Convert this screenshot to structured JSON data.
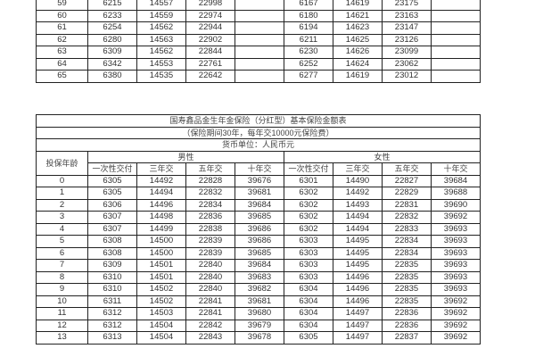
{
  "top_table": {
    "rows": [
      {
        "male": [
          "59",
          "6215",
          "14557",
          "22998",
          ""
        ],
        "female": [
          "6167",
          "14619",
          "23175",
          ""
        ]
      },
      {
        "male": [
          "60",
          "6233",
          "14559",
          "22974",
          ""
        ],
        "female": [
          "6180",
          "14621",
          "23163",
          ""
        ]
      },
      {
        "male": [
          "61",
          "6254",
          "14562",
          "22944",
          ""
        ],
        "female": [
          "6194",
          "14623",
          "23147",
          ""
        ]
      },
      {
        "male": [
          "62",
          "6280",
          "14563",
          "22902",
          ""
        ],
        "female": [
          "6211",
          "14625",
          "23126",
          ""
        ]
      },
      {
        "male": [
          "63",
          "6309",
          "14562",
          "22844",
          ""
        ],
        "female": [
          "6230",
          "14626",
          "23099",
          ""
        ]
      },
      {
        "male": [
          "64",
          "6342",
          "14553",
          "22761",
          ""
        ],
        "female": [
          "6252",
          "14624",
          "23062",
          ""
        ]
      },
      {
        "male": [
          "65",
          "6380",
          "14535",
          "22642",
          ""
        ],
        "female": [
          "6277",
          "14619",
          "23012",
          ""
        ]
      }
    ]
  },
  "main_table": {
    "title": "国寿鑫品金生年金保险（分红型）基本保险金额表",
    "subtitle": "（保险期间30年，每年交10000元保险费）",
    "currency": "货币单位：人民币元",
    "age_header": "投保年龄",
    "male_header": "男性",
    "female_header": "女性",
    "sub_headers": [
      "一次性交付",
      "三年交",
      "五年交",
      "十年交",
      "一次性交付",
      "三年交",
      "五年交",
      "十年交"
    ],
    "rows": [
      [
        "0",
        "6305",
        "14492",
        "22828",
        "39676",
        "6301",
        "14490",
        "22827",
        "39684"
      ],
      [
        "1",
        "6305",
        "14494",
        "22832",
        "39681",
        "6302",
        "14492",
        "22829",
        "39688"
      ],
      [
        "2",
        "6306",
        "14496",
        "22834",
        "39684",
        "6302",
        "14493",
        "22831",
        "39690"
      ],
      [
        "3",
        "6307",
        "14498",
        "22836",
        "39685",
        "6302",
        "14494",
        "22832",
        "39692"
      ],
      [
        "4",
        "6307",
        "14499",
        "22838",
        "39686",
        "6302",
        "14494",
        "22833",
        "39693"
      ],
      [
        "5",
        "6308",
        "14500",
        "22839",
        "39686",
        "6303",
        "14495",
        "22834",
        "39693"
      ],
      [
        "6",
        "6308",
        "14500",
        "22839",
        "39685",
        "6303",
        "14495",
        "22834",
        "39693"
      ],
      [
        "7",
        "6309",
        "14501",
        "22840",
        "39684",
        "6303",
        "14495",
        "22835",
        "39693"
      ],
      [
        "8",
        "6310",
        "14501",
        "22840",
        "39683",
        "6303",
        "14496",
        "22835",
        "39693"
      ],
      [
        "9",
        "6310",
        "14502",
        "22840",
        "39682",
        "6304",
        "14496",
        "22835",
        "39693"
      ],
      [
        "10",
        "6311",
        "14502",
        "22841",
        "39681",
        "6304",
        "14496",
        "22835",
        "39692"
      ],
      [
        "11",
        "6312",
        "14503",
        "22841",
        "39680",
        "6304",
        "14497",
        "22836",
        "39692"
      ],
      [
        "12",
        "6312",
        "14504",
        "22842",
        "39679",
        "6304",
        "14497",
        "22836",
        "39692"
      ],
      [
        "13",
        "6313",
        "14504",
        "22843",
        "39678",
        "6305",
        "14497",
        "22837",
        "39692"
      ]
    ]
  }
}
